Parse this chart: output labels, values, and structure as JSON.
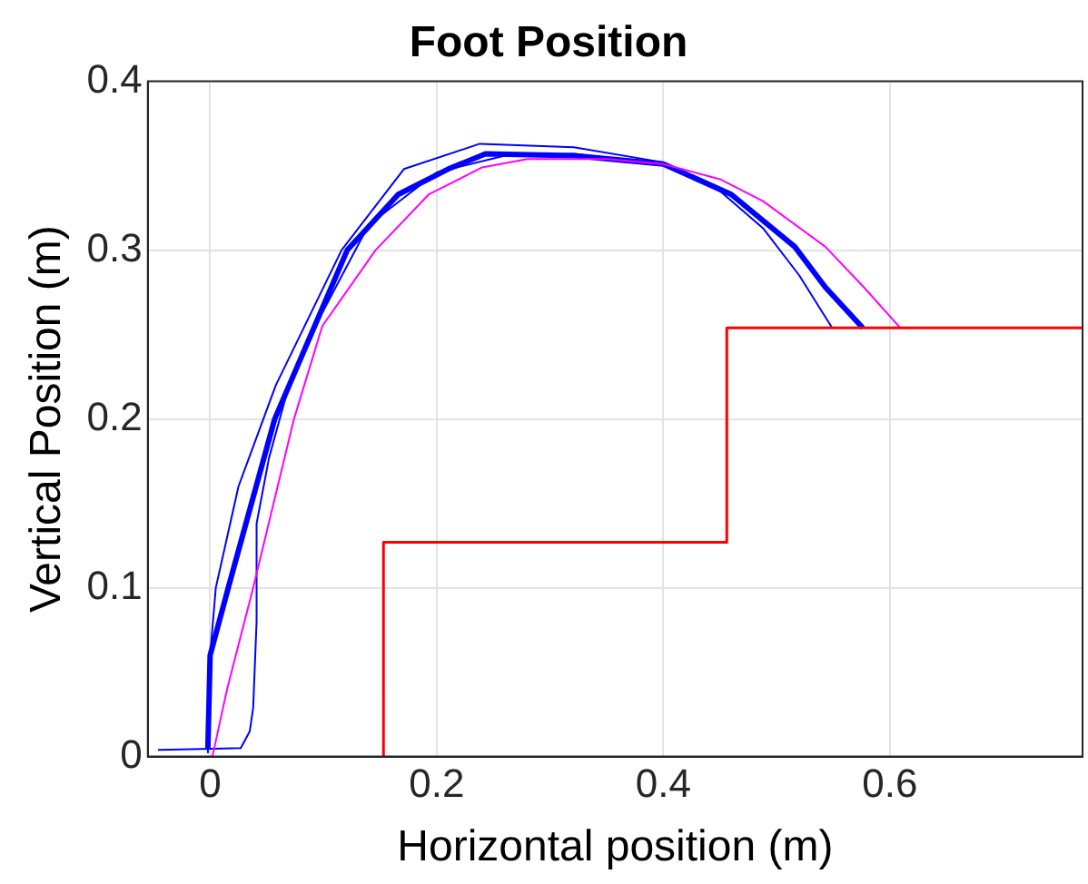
{
  "chart_data": {
    "type": "line",
    "title": "Foot Position",
    "xlabel": "Horizontal position (m)",
    "ylabel": "Vertical Position (m)",
    "xlim": [
      -0.055,
      0.77
    ],
    "ylim": [
      0,
      0.4
    ],
    "xticks": [
      0,
      0.2,
      0.4,
      0.6
    ],
    "yticks": [
      0,
      0.1,
      0.2,
      0.3,
      0.4
    ],
    "grid": true,
    "legend": false,
    "marker": "none",
    "line_style": "solid",
    "series": [
      {
        "color": "#ff0000",
        "x": [
          0.153,
          0.153,
          0.456,
          0.456,
          0.77
        ],
        "values": [
          0,
          0.127,
          0.127,
          0.254,
          0.254
        ]
      },
      {
        "color": "#ff00ff",
        "x": [
          0.002,
          0.015,
          0.038,
          0.074,
          0.099,
          0.146,
          0.193,
          0.24,
          0.28,
          0.35,
          0.4,
          0.45,
          0.488,
          0.543,
          0.577,
          0.609
        ],
        "values": [
          0,
          0.04,
          0.1,
          0.2,
          0.255,
          0.3,
          0.333,
          0.349,
          0.354,
          0.354,
          0.351,
          0.342,
          0.329,
          0.302,
          0.278,
          0.254
        ]
      },
      {
        "color": "#0000ff",
        "x": [
          -0.046,
          0.027,
          0.035,
          0.038,
          0.041,
          0.041,
          0.052,
          0.068,
          0.099,
          0.14,
          0.2,
          0.26,
          0.321,
          0.4,
          0.46,
          0.516,
          0.543,
          0.576
        ],
        "values": [
          0.004,
          0.005,
          0.015,
          0.029,
          0.08,
          0.138,
          0.177,
          0.216,
          0.263,
          0.315,
          0.346,
          0.356,
          0.357,
          0.351,
          0.333,
          0.302,
          0.278,
          0.254
        ]
      },
      {
        "color": "#0000ff",
        "x": [
          -0.002,
          0,
          0.005,
          0.025,
          0.058,
          0.116,
          0.171,
          0.238,
          0.321,
          0.4,
          0.45,
          0.488,
          0.52,
          0.549
        ],
        "values": [
          0.002,
          0.06,
          0.1,
          0.16,
          0.22,
          0.3,
          0.348,
          0.363,
          0.361,
          0.352,
          0.335,
          0.313,
          0.285,
          0.254
        ]
      },
      {
        "color": "#0000ff",
        "x": [
          -0.002,
          0,
          0.016,
          0.057,
          0.121,
          0.166,
          0.21,
          0.243,
          0.321,
          0.4,
          0.46,
          0.516,
          0.543,
          0.576
        ],
        "values": [
          0.005,
          0.06,
          0.1,
          0.2,
          0.3,
          0.333,
          0.348,
          0.357,
          0.356,
          0.351,
          0.333,
          0.302,
          0.278,
          0.254
        ]
      }
    ]
  }
}
